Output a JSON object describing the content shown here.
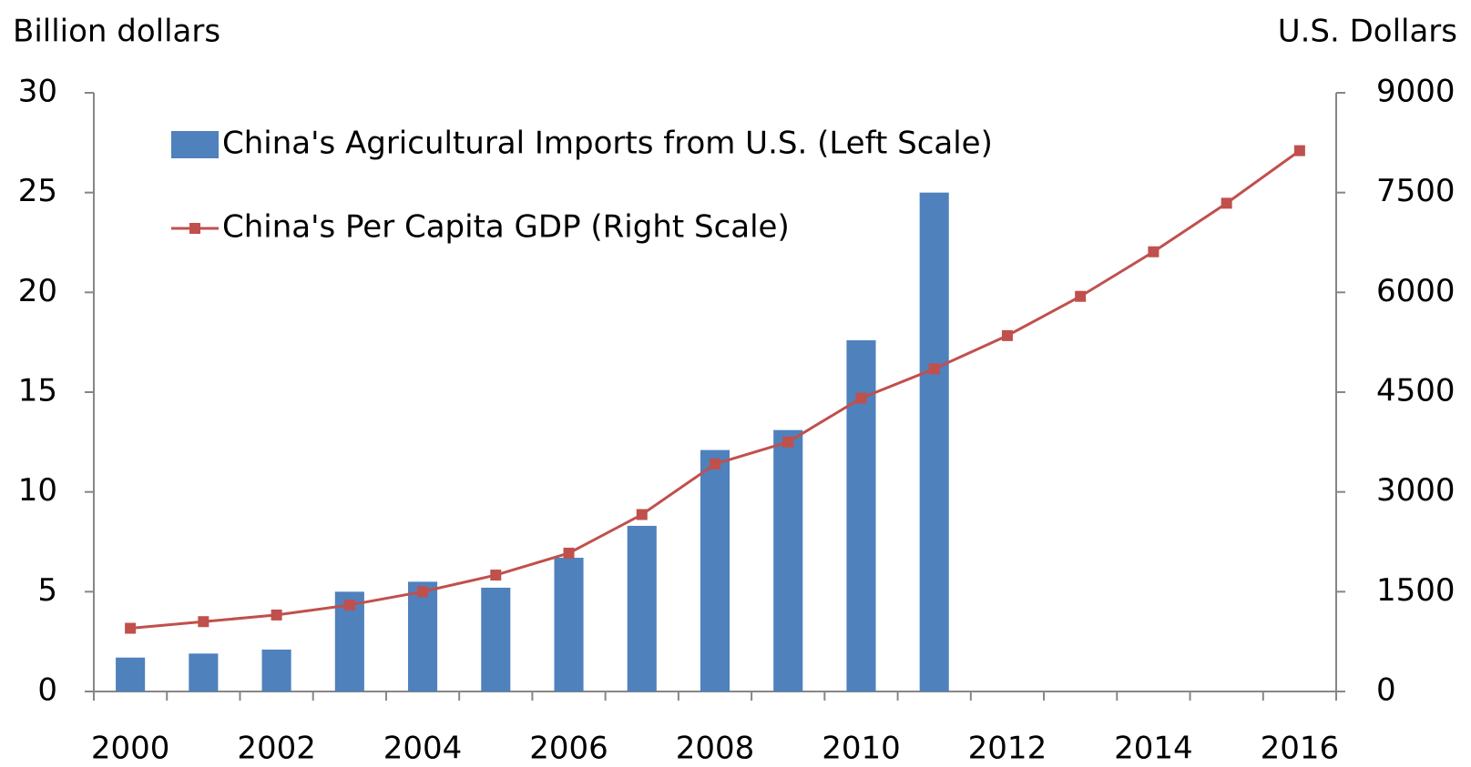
{
  "chart_data": {
    "type": "bar",
    "y_label": "Billion dollars",
    "y2_label": "U.S. Dollars",
    "categories": [
      "2000",
      null,
      "2002",
      null,
      "2004",
      null,
      "2006",
      null,
      "2008",
      null,
      "2010",
      null,
      "2012",
      null,
      "2014",
      null,
      "2016"
    ],
    "series": [
      {
        "name": "China's Agricultural Imports from U.S. (Left Scale)",
        "type": "bar",
        "color": "#4f81bd",
        "values": [
          1.7,
          1.9,
          2.1,
          5.0,
          5.5,
          5.2,
          6.7,
          8.3,
          12.1,
          13.1,
          17.6,
          25.0,
          null,
          null,
          null,
          null,
          null
        ]
      },
      {
        "name": "China's Per Capita GDP (Right Scale)",
        "type": "line",
        "axis": "y2",
        "color": "#c0504d",
        "values": [
          950,
          1050,
          1150,
          1300,
          1500,
          1750,
          2080,
          2660,
          3420,
          3750,
          4410,
          4850,
          5350,
          5940,
          6610,
          7340,
          8130
        ]
      }
    ],
    "ylim": [
      0,
      30
    ],
    "yticks": [
      0,
      5,
      10,
      15,
      20,
      25,
      30
    ],
    "y2lim": [
      0,
      9000
    ],
    "y2ticks": [
      0,
      1500,
      3000,
      4500,
      6000,
      7500,
      9000
    ],
    "grid": false,
    "legend": "upper-left"
  }
}
